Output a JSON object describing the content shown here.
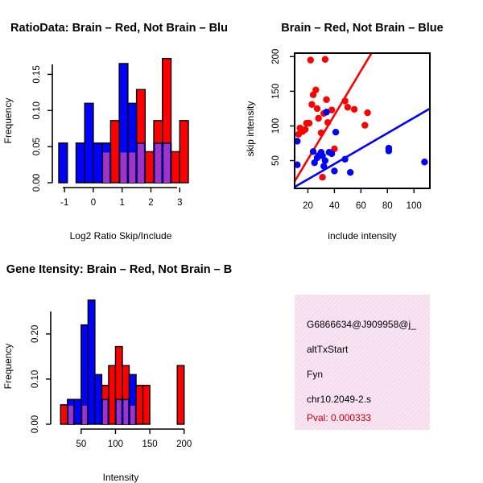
{
  "colors": {
    "red": "#ff0000",
    "blue": "#0000ff",
    "overlap": "#9933cc",
    "info_bg": "#f6dcef",
    "pval": "#cc0000"
  },
  "chart_data": [
    {
      "type": "bar",
      "title": "RatioData: Brain – Red, Not Brain – Blu",
      "xlabel": "Log2 Ratio Skip/Include",
      "ylabel": "Frequency",
      "xlim": [
        -1.2,
        3.3
      ],
      "ylim": [
        0,
        0.175
      ],
      "xticks": [
        "-1",
        "0",
        "1",
        "2",
        "3"
      ],
      "yticks": [
        "0.00",
        "0.05",
        "0.10",
        "0.15"
      ],
      "bin_width": 0.3,
      "series": [
        {
          "name": "Brain",
          "color": "red",
          "bins": [
            [
              0.6,
              0.086
            ],
            [
              0.9,
              0.043
            ],
            [
              1.5,
              0.129
            ],
            [
              1.8,
              0.043
            ],
            [
              2.1,
              0.086
            ],
            [
              2.4,
              0.172
            ],
            [
              2.7,
              0.043
            ],
            [
              3.0,
              0.086
            ],
            [
              1.2,
              0.043
            ],
            [
              0.3,
              0.043
            ]
          ]
        },
        {
          "name": "Not Brain",
          "color": "blue",
          "bins": [
            [
              -1.2,
              0.055
            ],
            [
              -0.9,
              0.0
            ],
            [
              -0.6,
              0.055
            ],
            [
              -0.3,
              0.11
            ],
            [
              0.0,
              0.055
            ],
            [
              0.3,
              0.055
            ],
            [
              0.9,
              0.165
            ],
            [
              1.2,
              0.11
            ],
            [
              1.5,
              0.055
            ],
            [
              2.1,
              0.055
            ],
            [
              2.4,
              0.055
            ]
          ]
        }
      ]
    },
    {
      "type": "scatter",
      "title": "Brain – Red, Not Brain – Blue",
      "xlabel": "include intensity",
      "ylabel": "skip intensity",
      "xlim": [
        10,
        112
      ],
      "ylim": [
        10,
        205
      ],
      "xticks": [
        "20",
        "40",
        "60",
        "80",
        "100"
      ],
      "yticks": [
        "50",
        "100",
        "150",
        "200"
      ],
      "series": [
        {
          "name": "Brain",
          "color": "red",
          "points": [
            [
              22,
              195
            ],
            [
              33,
              196
            ],
            [
              13,
              88
            ],
            [
              14,
              97
            ],
            [
              16,
              92
            ],
            [
              18,
              95
            ],
            [
              19,
              104
            ],
            [
              21,
              104
            ],
            [
              23,
              131
            ],
            [
              24,
              145
            ],
            [
              26,
              152
            ],
            [
              27,
              125
            ],
            [
              28,
              111
            ],
            [
              30,
              90
            ],
            [
              32,
              118
            ],
            [
              34,
              138
            ],
            [
              35,
              105
            ],
            [
              38,
              123
            ],
            [
              40,
              67
            ],
            [
              48,
              136
            ],
            [
              50,
              127
            ],
            [
              55,
              124
            ],
            [
              63,
              101
            ],
            [
              65,
              119
            ],
            [
              31,
              26
            ]
          ],
          "fit": [
            [
              10,
              20
            ],
            [
              68,
              205
            ]
          ]
        },
        {
          "name": "Not Brain",
          "color": "blue",
          "points": [
            [
              12,
              44
            ],
            [
              12,
              78
            ],
            [
              24,
              63
            ],
            [
              25,
              47
            ],
            [
              27,
              54
            ],
            [
              28,
              57
            ],
            [
              30,
              62
            ],
            [
              31,
              57
            ],
            [
              32,
              42
            ],
            [
              33,
              50
            ],
            [
              34,
              120
            ],
            [
              36,
              62
            ],
            [
              38,
              60
            ],
            [
              40,
              35
            ],
            [
              41,
              91
            ],
            [
              48,
              52
            ],
            [
              52,
              33
            ],
            [
              81,
              68
            ],
            [
              81,
              64
            ],
            [
              108,
              48
            ]
          ],
          "fit": [
            [
              10,
              12
            ],
            [
              112,
              125
            ]
          ]
        }
      ]
    },
    {
      "type": "bar",
      "title": "Gene Itensity: Brain – Red, Not Brain – B",
      "xlabel": "Intensity",
      "ylabel": "Frequency",
      "xlim": [
        15,
        205
      ],
      "ylim": [
        0,
        0.28
      ],
      "xticks": [
        "50",
        "100",
        "150",
        "200"
      ],
      "yticks": [
        "0.00",
        "0.10",
        "0.20"
      ],
      "bin_width": 10,
      "series": [
        {
          "name": "Brain",
          "color": "red",
          "bins": [
            [
              20,
              0.043
            ],
            [
              30,
              0.043
            ],
            [
              50,
              0.043
            ],
            [
              90,
              0.13
            ],
            [
              100,
              0.172
            ],
            [
              110,
              0.13
            ],
            [
              120,
              0.043
            ],
            [
              130,
              0.086
            ],
            [
              140,
              0.086
            ],
            [
              190,
              0.13
            ],
            [
              80,
              0.086
            ]
          ]
        },
        {
          "name": "Not Brain",
          "color": "blue",
          "bins": [
            [
              30,
              0.055
            ],
            [
              40,
              0.055
            ],
            [
              50,
              0.22
            ],
            [
              60,
              0.275
            ],
            [
              70,
              0.11
            ],
            [
              80,
              0.055
            ],
            [
              120,
              0.11
            ],
            [
              110,
              0.055
            ],
            [
              100,
              0.055
            ]
          ]
        }
      ]
    }
  ],
  "info": {
    "line1": "G6866634@J909958@j_",
    "line2": "altTxStart",
    "line3": "Fyn",
    "line4": "chr10.2049-2.s",
    "pval": "Pval: 0.000333"
  }
}
